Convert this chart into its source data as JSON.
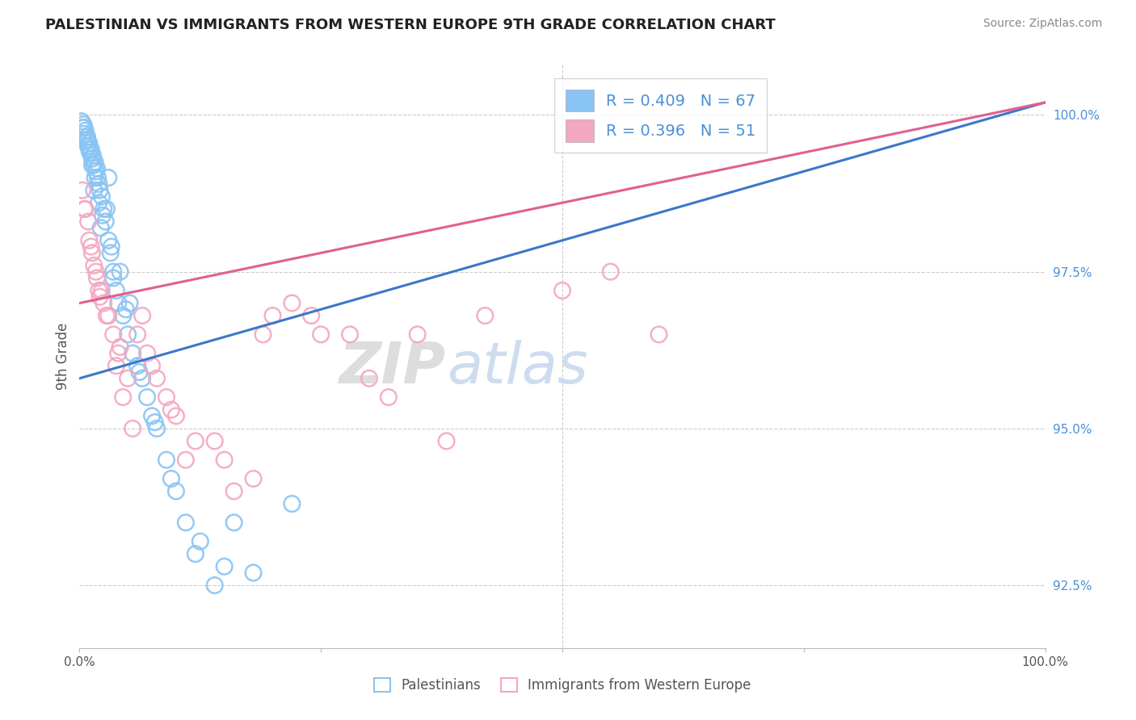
{
  "title": "PALESTINIAN VS IMMIGRANTS FROM WESTERN EUROPE 9TH GRADE CORRELATION CHART",
  "source": "Source: ZipAtlas.com",
  "ylabel": "9th Grade",
  "legend_blue_label": "Palestinians",
  "legend_pink_label": "Immigrants from Western Europe",
  "r_blue": 0.409,
  "n_blue": 67,
  "r_pink": 0.396,
  "n_pink": 51,
  "blue_color": "#89C4F4",
  "pink_color": "#F4A7C0",
  "blue_line_color": "#3A78C9",
  "pink_line_color": "#E06090",
  "ymin": 91.5,
  "ymax": 100.8,
  "xmin": 0,
  "xmax": 100,
  "yticks": [
    92.5,
    95.0,
    97.5,
    100.0
  ],
  "blue_x": [
    0.2,
    0.3,
    0.4,
    0.5,
    0.6,
    0.7,
    0.8,
    0.9,
    1.0,
    1.1,
    1.2,
    1.3,
    1.4,
    1.5,
    1.6,
    1.7,
    1.8,
    1.9,
    2.0,
    2.1,
    2.3,
    2.5,
    2.7,
    3.0,
    3.2,
    3.5,
    3.8,
    4.0,
    4.5,
    5.0,
    5.5,
    6.0,
    6.5,
    7.0,
    7.5,
    8.0,
    9.0,
    10.0,
    11.0,
    12.0,
    14.0,
    16.0,
    4.2,
    3.0,
    2.8,
    5.2,
    1.5,
    2.2,
    0.8,
    1.1,
    1.3,
    1.6,
    2.4,
    3.3,
    4.8,
    6.2,
    7.8,
    9.5,
    12.5,
    15.0,
    18.0,
    22.0,
    0.5,
    0.9,
    1.0,
    2.0,
    3.5
  ],
  "blue_y": [
    99.9,
    99.8,
    99.85,
    99.7,
    99.75,
    99.6,
    99.65,
    99.5,
    99.55,
    99.4,
    99.45,
    99.3,
    99.35,
    99.2,
    99.25,
    99.1,
    99.15,
    99.0,
    98.9,
    98.8,
    98.7,
    98.5,
    98.3,
    98.0,
    97.8,
    97.5,
    97.2,
    97.0,
    96.8,
    96.5,
    96.2,
    96.0,
    95.8,
    95.5,
    95.2,
    95.0,
    94.5,
    94.0,
    93.5,
    93.0,
    92.5,
    93.5,
    97.5,
    99.0,
    98.5,
    97.0,
    98.8,
    98.2,
    99.6,
    99.4,
    99.2,
    99.0,
    98.4,
    97.9,
    96.9,
    95.9,
    95.1,
    94.2,
    93.2,
    92.8,
    92.7,
    93.8,
    99.8,
    99.5,
    99.45,
    98.6,
    97.4
  ],
  "pink_x": [
    0.3,
    0.6,
    0.9,
    1.2,
    1.5,
    1.8,
    2.1,
    2.5,
    3.0,
    3.5,
    4.0,
    5.0,
    6.0,
    7.0,
    8.0,
    9.0,
    10.0,
    12.0,
    15.0,
    18.0,
    22.0,
    28.0,
    35.0,
    42.0,
    50.0,
    60.0,
    0.5,
    1.0,
    1.3,
    1.7,
    2.3,
    2.8,
    3.8,
    4.5,
    5.5,
    7.5,
    11.0,
    14.0,
    20.0,
    25.0,
    30.0,
    4.2,
    2.0,
    6.5,
    9.5,
    16.0,
    19.0,
    24.0,
    32.0,
    38.0,
    55.0
  ],
  "pink_y": [
    98.8,
    98.5,
    98.3,
    97.9,
    97.6,
    97.4,
    97.1,
    97.0,
    96.8,
    96.5,
    96.2,
    95.8,
    96.5,
    96.2,
    95.8,
    95.5,
    95.2,
    94.8,
    94.5,
    94.2,
    97.0,
    96.5,
    96.5,
    96.8,
    97.2,
    96.5,
    98.5,
    98.0,
    97.8,
    97.5,
    97.2,
    96.8,
    96.0,
    95.5,
    95.0,
    96.0,
    94.5,
    94.8,
    96.8,
    96.5,
    95.8,
    96.3,
    97.2,
    96.8,
    95.3,
    94.0,
    96.5,
    96.8,
    95.5,
    94.8,
    97.5
  ],
  "blue_line_x0": 0,
  "blue_line_y0": 95.8,
  "blue_line_x1": 100,
  "blue_line_y1": 100.2,
  "pink_line_x0": 0,
  "pink_line_y0": 97.0,
  "pink_line_x1": 100,
  "pink_line_y1": 100.2
}
